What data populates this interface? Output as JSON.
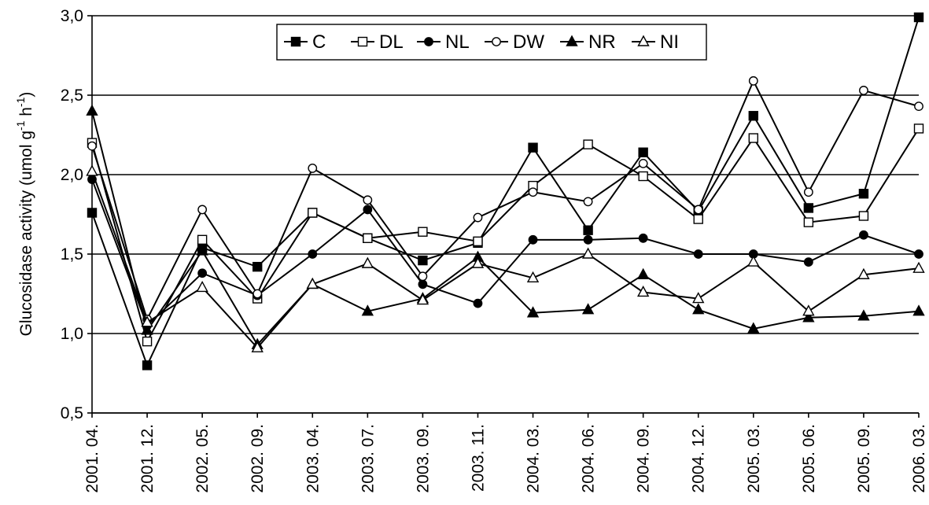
{
  "chart_data": {
    "type": "line",
    "ylabel": "Glucosidase activity (umol g",
    "ylabel_sup1": "-1",
    "ylabel_mid": " h",
    "ylabel_sup2": "-1",
    "ylabel_end": ")",
    "ylim": [
      0.5,
      3.0
    ],
    "yticks": [
      0.5,
      1.0,
      1.5,
      2.0,
      2.5,
      3.0
    ],
    "ytick_labels": [
      "0,5",
      "1,0",
      "1,5",
      "2,0",
      "2,5",
      "3,0"
    ],
    "grid": true,
    "legend_position": "top",
    "x": [
      "2001. 04.",
      "2001. 12.",
      "2002. 05.",
      "2002. 09.",
      "2003. 04.",
      "2003. 07.",
      "2003. 09.",
      "2003. 11.",
      "2004. 03.",
      "2004. 06.",
      "2004. 09.",
      "2004. 12.",
      "2005. 03.",
      "2005. 06.",
      "2005. 09.",
      "2006. 03."
    ],
    "series": [
      {
        "name": "C",
        "marker": "square-filled",
        "values": [
          1.76,
          0.8,
          1.54,
          1.42,
          1.76,
          1.6,
          1.46,
          1.57,
          2.17,
          1.65,
          2.14,
          1.77,
          2.37,
          1.79,
          1.88,
          2.99
        ]
      },
      {
        "name": "DL",
        "marker": "square-open",
        "values": [
          2.2,
          0.95,
          1.59,
          1.22,
          1.76,
          1.6,
          1.64,
          1.58,
          1.93,
          2.19,
          1.99,
          1.72,
          2.23,
          1.7,
          1.74,
          2.29
        ]
      },
      {
        "name": "NL",
        "marker": "circle-filled",
        "values": [
          1.97,
          1.05,
          1.38,
          1.24,
          1.5,
          1.78,
          1.31,
          1.19,
          1.59,
          1.59,
          1.6,
          1.5,
          1.5,
          1.45,
          1.62,
          1.5
        ]
      },
      {
        "name": "DW",
        "marker": "circle-open",
        "values": [
          2.18,
          1.09,
          1.78,
          1.25,
          2.04,
          1.84,
          1.36,
          1.73,
          1.89,
          1.83,
          2.07,
          1.78,
          2.59,
          1.89,
          2.53,
          2.43
        ]
      },
      {
        "name": "NR",
        "marker": "triangle-filled",
        "values": [
          2.4,
          1.02,
          1.52,
          0.93,
          1.31,
          1.14,
          1.22,
          1.48,
          1.13,
          1.15,
          1.37,
          1.15,
          1.03,
          1.1,
          1.11,
          1.14
        ]
      },
      {
        "name": "NI",
        "marker": "triangle-open",
        "values": [
          2.02,
          1.07,
          1.29,
          0.91,
          1.31,
          1.44,
          1.21,
          1.44,
          1.35,
          1.5,
          1.26,
          1.22,
          1.45,
          1.14,
          1.37,
          1.41
        ]
      }
    ]
  }
}
